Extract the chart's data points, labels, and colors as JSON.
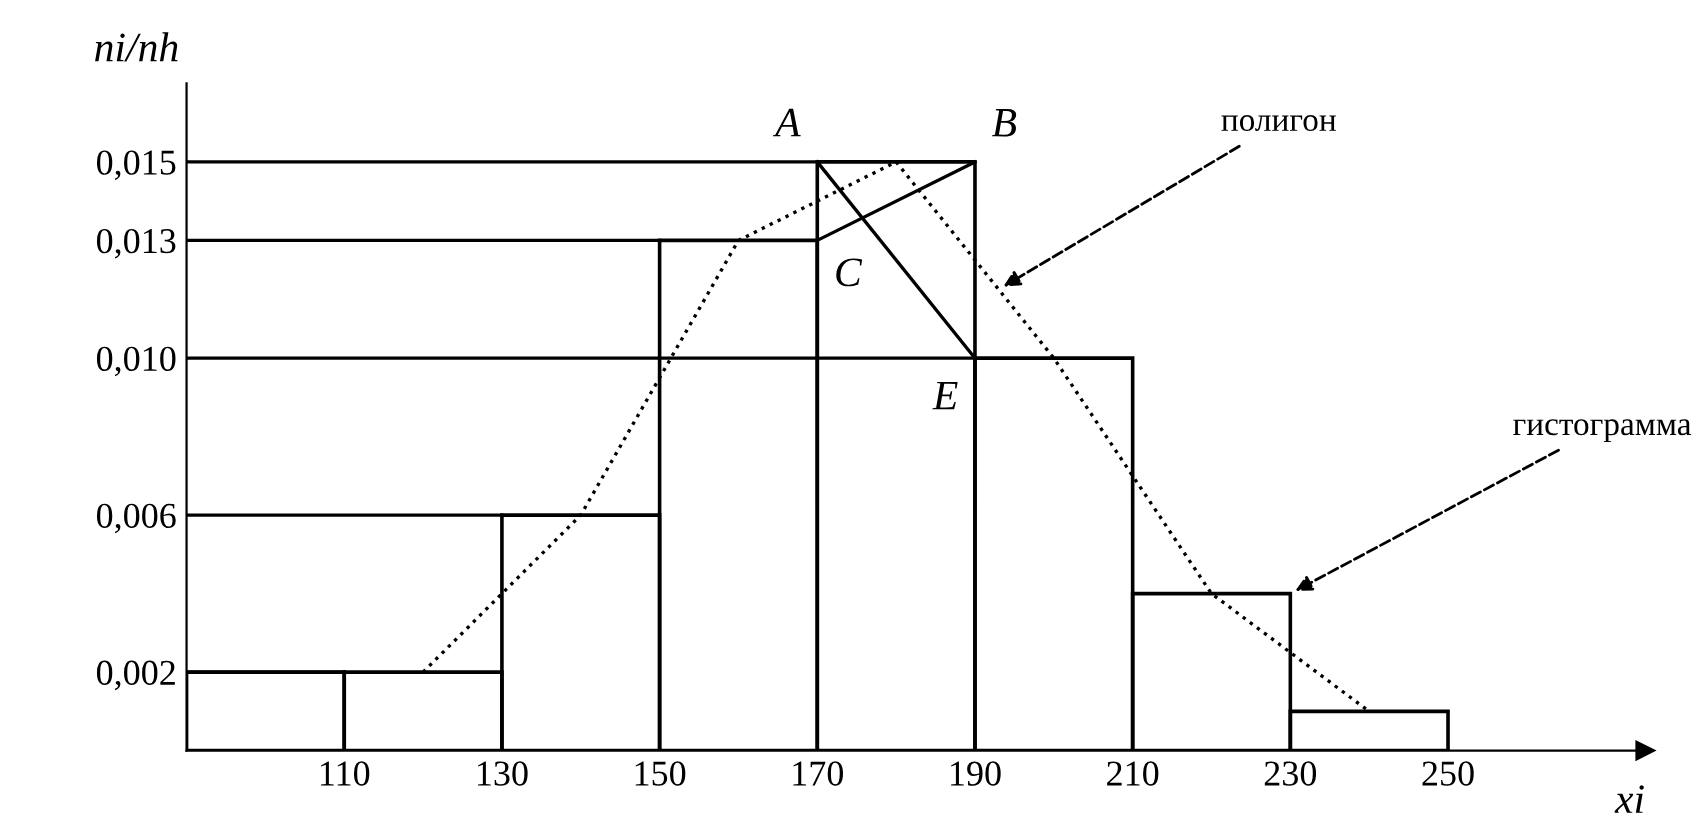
{
  "chart_data": {
    "type": "histogram",
    "xlabel": "xi",
    "ylabel": "ni/nh",
    "bins": [
      90,
      110,
      130,
      150,
      170,
      190,
      210,
      230,
      250
    ],
    "values": [
      0.002,
      0.002,
      0.006,
      0.013,
      0.015,
      0.01,
      0.004,
      0.001
    ],
    "color": "#000000",
    "series": [
      {
        "type": "line",
        "color": "#000000",
        "line_style": "dotted",
        "x": [
          120,
          140,
          160,
          180,
          200,
          220,
          240
        ],
        "values": [
          0.002,
          0.006,
          0.013,
          0.015,
          0.01,
          0.004,
          0.001
        ]
      },
      {
        "type": "line",
        "color": "#000000",
        "line_style": "solid",
        "x": [
          170,
          190
        ],
        "values": [
          0.015,
          0.01
        ]
      },
      {
        "type": "line",
        "color": "#000000",
        "line_style": "solid",
        "x": [
          170,
          190
        ],
        "values": [
          0.013,
          0.015
        ]
      },
      {
        "type": "line",
        "color": "#000000",
        "line_style": "solid",
        "x": [
          90,
          110
        ],
        "values": [
          0.002,
          0.002
        ]
      },
      {
        "type": "line",
        "color": "#000000",
        "line_style": "solid",
        "x": [
          90,
          130
        ],
        "values": [
          0.006,
          0.006
        ]
      },
      {
        "type": "line",
        "color": "#000000",
        "line_style": "solid",
        "x": [
          90,
          190
        ],
        "values": [
          0.01,
          0.01
        ]
      },
      {
        "type": "line",
        "color": "#000000",
        "line_style": "solid",
        "x": [
          90,
          150
        ],
        "values": [
          0.013,
          0.013
        ]
      },
      {
        "type": "line",
        "color": "#000000",
        "line_style": "solid",
        "x": [
          90,
          170
        ],
        "values": [
          0.015,
          0.015
        ]
      }
    ],
    "xlim": [
      90,
      275
    ],
    "ylim": [
      0,
      0.017
    ],
    "xticks": [
      110,
      130,
      150,
      170,
      190,
      210,
      230,
      250
    ],
    "yticks": [
      {
        "value": 0.002,
        "label": "0,002"
      },
      {
        "value": 0.006,
        "label": "0,006"
      },
      {
        "value": 0.01,
        "label": "0,010"
      },
      {
        "value": 0.013,
        "label": "0,013"
      },
      {
        "value": 0.015,
        "label": "0,015"
      }
    ],
    "annotations": [
      {
        "text": "A",
        "x": 170,
        "y": 0.015
      },
      {
        "text": "B",
        "x": 190,
        "y": 0.015
      },
      {
        "text": "C",
        "x": 170,
        "y": 0.013
      },
      {
        "text": "E",
        "x": 190,
        "y": 0.01
      },
      {
        "text": "полигон",
        "x": 193,
        "y": 0.01175
      },
      {
        "text": "гистограмма",
        "x": 230,
        "y": 0.004
      }
    ]
  }
}
